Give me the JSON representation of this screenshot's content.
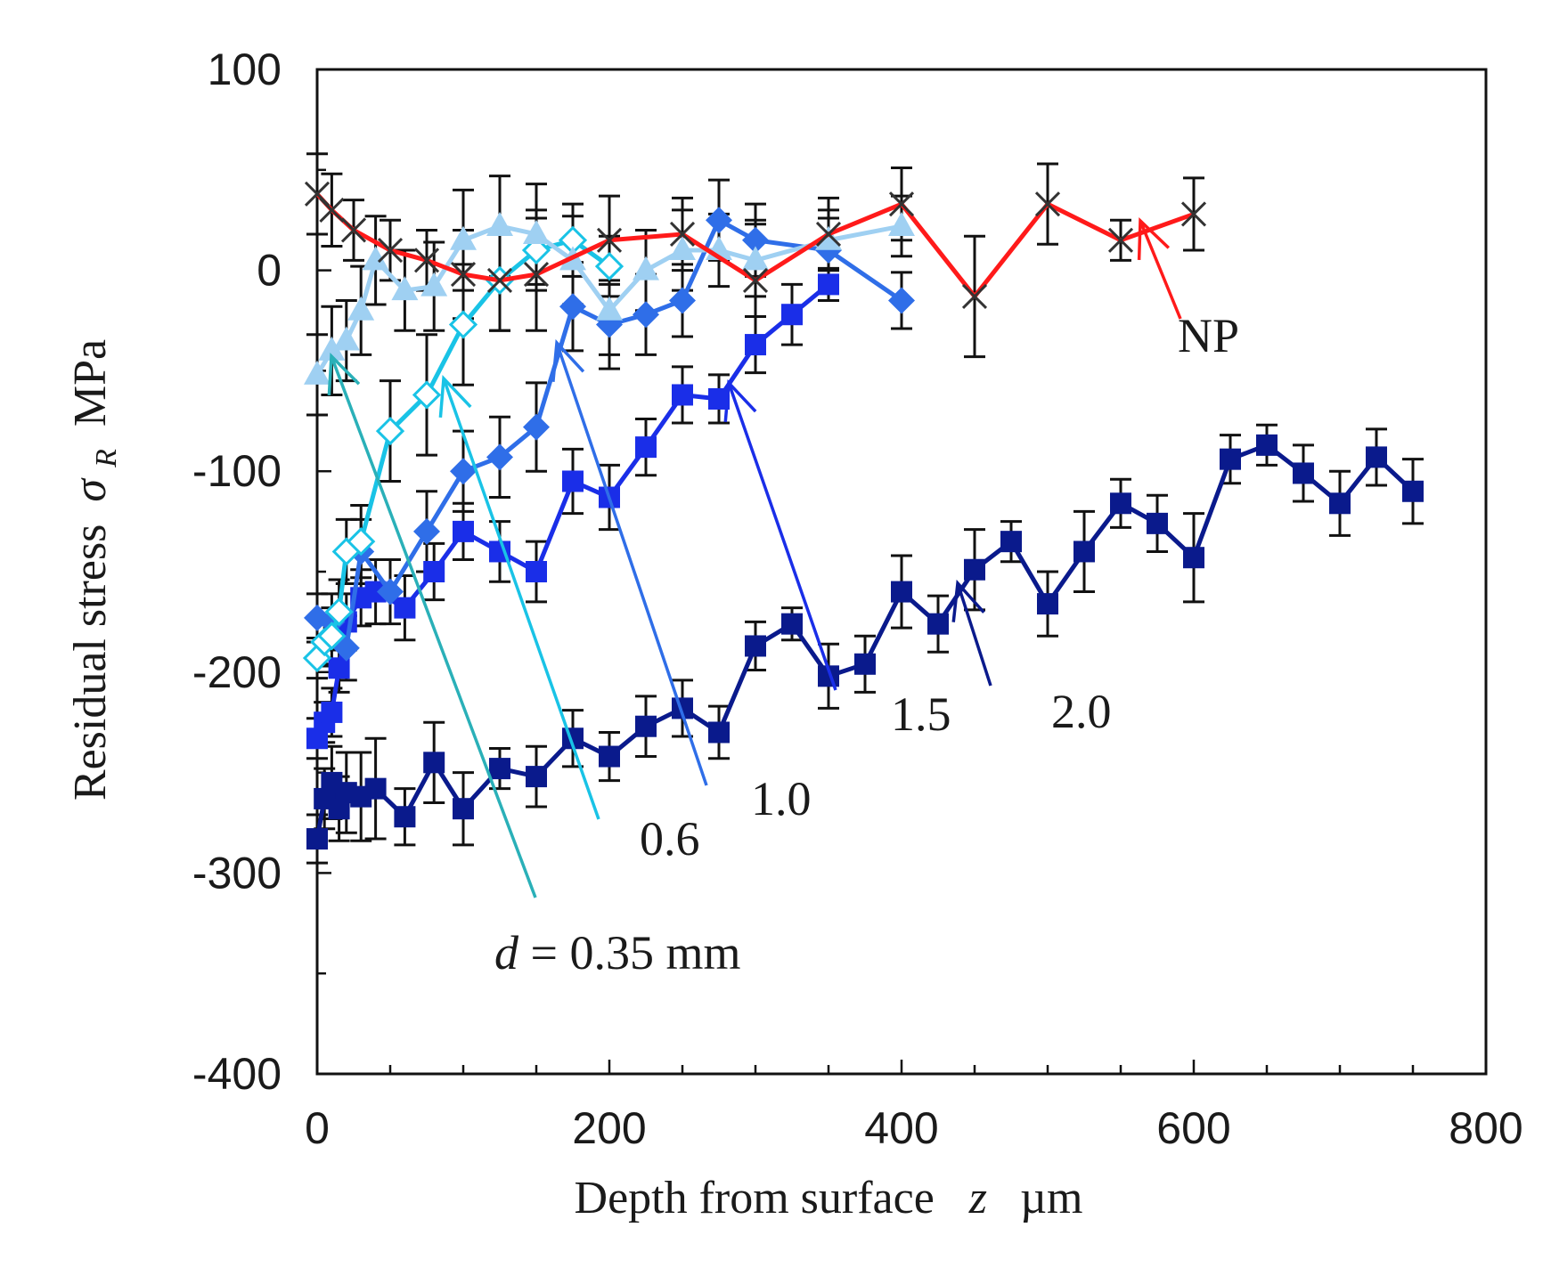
{
  "chart_data": {
    "type": "line",
    "xlabel": "Depth from surface",
    "xlabel_var": "z",
    "xlabel_unit": "µm",
    "ylabel": "Residual stress",
    "ylabel_var": "σ",
    "ylabel_sub": "R",
    "ylabel_unit": "MPa",
    "xlim": [
      0,
      800
    ],
    "ylim": [
      -400,
      100
    ],
    "xticks": [
      0,
      200,
      400,
      600,
      800
    ],
    "yticks": [
      100,
      0,
      -100,
      -200,
      -300,
      -400
    ],
    "xtick_labels": [
      "0",
      "200",
      "400",
      "600",
      "800"
    ],
    "ytick_labels": [
      "100",
      "0",
      "-100",
      "-200",
      "-300",
      "-400"
    ],
    "series": [
      {
        "name": "d = 2.0 mm",
        "label": "2.0",
        "color": "#0a1a8c",
        "marker": "square",
        "x": [
          0,
          5,
          10,
          15,
          20,
          30,
          40,
          60,
          80,
          100,
          125,
          150,
          175,
          200,
          225,
          250,
          275,
          300,
          325,
          350,
          375,
          400,
          425,
          450,
          475,
          500,
          525,
          550,
          575,
          600,
          625,
          650,
          675,
          700,
          725,
          750
        ],
        "y": [
          -283,
          -263,
          -255,
          -268,
          -260,
          -262,
          -258,
          -272,
          -245,
          -268,
          -248,
          -252,
          -233,
          -242,
          -227,
          -218,
          -230,
          -187,
          -176,
          -202,
          -196,
          -160,
          -176,
          -149,
          -135,
          -166,
          -140,
          -116,
          -126,
          -143,
          -94,
          -87,
          -101,
          -116,
          -93,
          -110
        ],
        "err": [
          12,
          15,
          18,
          16,
          20,
          22,
          25,
          14,
          20,
          18,
          10,
          15,
          14,
          12,
          15,
          14,
          13,
          12,
          8,
          16,
          14,
          18,
          14,
          20,
          10,
          16,
          20,
          12,
          14,
          22,
          12,
          10,
          14,
          16,
          14,
          16
        ]
      },
      {
        "name": "d = 1.5 mm",
        "label": "1.5",
        "color": "#1a2ee8",
        "marker": "square",
        "x": [
          0,
          5,
          10,
          15,
          20,
          30,
          40,
          60,
          80,
          100,
          125,
          150,
          175,
          200,
          225,
          250,
          275,
          300,
          325,
          350
        ],
        "y": [
          -233,
          -225,
          -220,
          -198,
          -175,
          -163,
          -160,
          -168,
          -150,
          -130,
          -140,
          -150,
          -105,
          -113,
          -88,
          -62,
          -64,
          -37,
          -22,
          -7
        ],
        "err": [
          10,
          10,
          12,
          12,
          14,
          14,
          16,
          16,
          14,
          14,
          15,
          15,
          16,
          16,
          14,
          14,
          12,
          14,
          15,
          8
        ]
      },
      {
        "name": "d = 1.0 mm",
        "label": "1.0",
        "color": "#2f6ee8",
        "marker": "diamond",
        "x": [
          0,
          10,
          20,
          30,
          50,
          75,
          100,
          125,
          150,
          175,
          200,
          225,
          250,
          275,
          300,
          350,
          400
        ],
        "y": [
          -173,
          -175,
          -188,
          -140,
          -160,
          -130,
          -100,
          -93,
          -78,
          -18,
          -27,
          -22,
          -15,
          25,
          15,
          10,
          -15
        ],
        "err": [
          12,
          14,
          16,
          16,
          16,
          20,
          20,
          20,
          22,
          22,
          22,
          20,
          18,
          20,
          18,
          16,
          14
        ]
      },
      {
        "name": "d = 0.6 mm",
        "label": "0.6",
        "color": "#19c3e6",
        "marker": "diamond-open",
        "x": [
          0,
          5,
          10,
          15,
          20,
          30,
          50,
          75,
          100,
          125,
          150,
          175,
          200
        ],
        "y": [
          -193,
          -185,
          -182,
          -170,
          -140,
          -135,
          -80,
          -62,
          -27,
          -5,
          10,
          15,
          2
        ],
        "err": [
          10,
          12,
          14,
          16,
          16,
          18,
          25,
          30,
          30,
          25,
          20,
          18,
          15
        ]
      },
      {
        "name": "d = 0.35 mm",
        "label": "d = 0.35 mm",
        "color": "#9fd0f2",
        "marker": "triangle",
        "x": [
          0,
          10,
          20,
          30,
          40,
          60,
          80,
          100,
          125,
          150,
          175,
          200,
          225,
          250,
          275,
          300,
          350,
          400
        ],
        "y": [
          -52,
          -40,
          -35,
          -20,
          5,
          -10,
          -8,
          15,
          22,
          18,
          5,
          -20,
          0,
          10,
          10,
          5,
          15,
          22
        ],
        "err": [
          20,
          22,
          20,
          22,
          22,
          20,
          22,
          25,
          25,
          25,
          22,
          22,
          20,
          20,
          18,
          18,
          15,
          15
        ]
      },
      {
        "name": "NP",
        "label": "NP",
        "color": "#ff1a1a",
        "marker": "x",
        "x": [
          0,
          10,
          25,
          50,
          75,
          100,
          125,
          150,
          200,
          250,
          300,
          350,
          400,
          450,
          500,
          550,
          600
        ],
        "y": [
          38,
          30,
          20,
          10,
          5,
          -2,
          -5,
          -2,
          15,
          18,
          -5,
          18,
          33,
          -13,
          33,
          15,
          28
        ],
        "err": [
          20,
          18,
          15,
          15,
          15,
          22,
          25,
          28,
          22,
          18,
          30,
          18,
          18,
          30,
          20,
          10,
          18
        ]
      }
    ],
    "annotations": [
      {
        "text": "NP",
        "color": "#ff1a1a"
      },
      {
        "text": "2.0",
        "color": "#0a1a8c"
      },
      {
        "text": "1.5",
        "color": "#1a2ee8"
      },
      {
        "text": "1.0",
        "color": "#2f6ee8"
      },
      {
        "text": "0.6",
        "color": "#19c3e6"
      },
      {
        "text": "0.35 mm",
        "italic_prefix": "d",
        "color": "#2ab0b8"
      }
    ]
  }
}
